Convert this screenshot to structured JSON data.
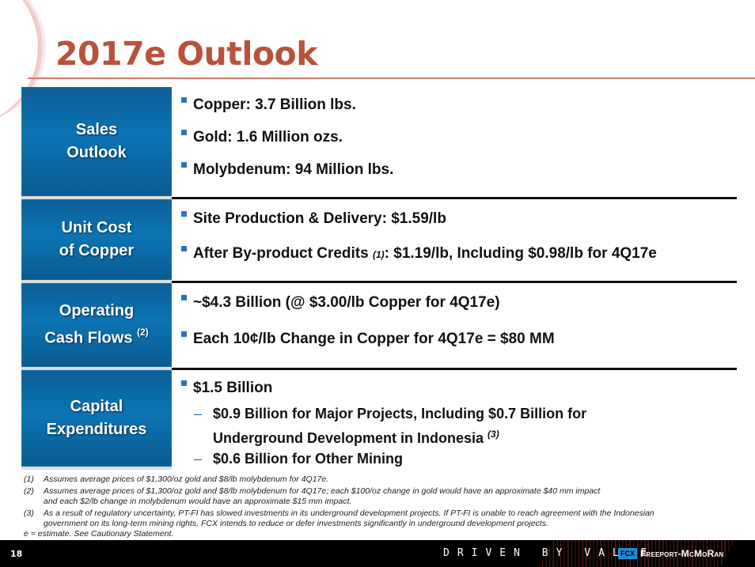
{
  "title": "2017e Outlook",
  "rows": [
    {
      "label_line1": "Sales",
      "label_line2": "Outlook",
      "bullets": [
        "Copper: 3.7 Billion lbs.",
        "Gold: 1.6 Million ozs.",
        "Molybdenum: 94 Million lbs."
      ]
    },
    {
      "label_line1": "Unit Cost",
      "label_line2": "of Copper",
      "bullets": [
        "Site Production & Delivery: $1.59/lb",
        "After By-product Credits"
      ],
      "bullet2_sup": "(1)",
      "bullet2_rest": ": $1.19/lb, Including $0.98/lb for 4Q17e"
    },
    {
      "label_line1": "Operating",
      "label_line2": "Cash Flows",
      "label_sup": "(2)",
      "bullets": [
        "~$4.3 Billion (@ $3.00/lb Copper for 4Q17e)",
        "Each 10¢/lb Change in Copper for 4Q17e = $80 MM"
      ]
    },
    {
      "label_line1": "Capital",
      "label_line2": "Expenditures",
      "bullets": [
        "$1.5 Billion"
      ],
      "sub_items": [
        {
          "dash": "–",
          "line1": "$0.9 Billion for Major Projects, Including $0.7 Billion for",
          "line2": "Underground Development in Indonesia",
          "sup": "(3)"
        },
        {
          "dash": "–",
          "line1": "$0.6 Billion for Other Mining"
        }
      ]
    }
  ],
  "footnotes": [
    {
      "num": "(1)",
      "line1": "Assumes average prices of $1,300/oz gold and $8/lb molybdenum for 4Q17e."
    },
    {
      "num": "(2)",
      "line1": "Assumes average prices of $1,300/oz gold and $8/lb molybdenum for 4Q17e; each $100/oz change in gold would have an approximate $40 mm impact",
      "line2": "and each $2/lb change in molybdenum would have an approximate $15 mm impact."
    },
    {
      "num": "(3)",
      "line1": "As a result of regulatory uncertainty, PT-FI has slowed investments in its underground development projects. If PT-FI is unable to reach agreement with the Indonesian",
      "line2": "government on its long-term mining rights, FCX intends to reduce or defer investments significantly in underground development projects."
    }
  ],
  "estimate_note": "e = estimate. See Cautionary Statement.",
  "footer": {
    "page_number": "18",
    "tagline": "DRIVEN BY VALUE",
    "logo_mark": "FCX",
    "logo_text": "Freeport-McMoRan"
  },
  "colors": {
    "title": "#b8533b",
    "label_bg": "#0c74b4",
    "bullet": "#2a73b5",
    "footer_bg": "#000000"
  }
}
